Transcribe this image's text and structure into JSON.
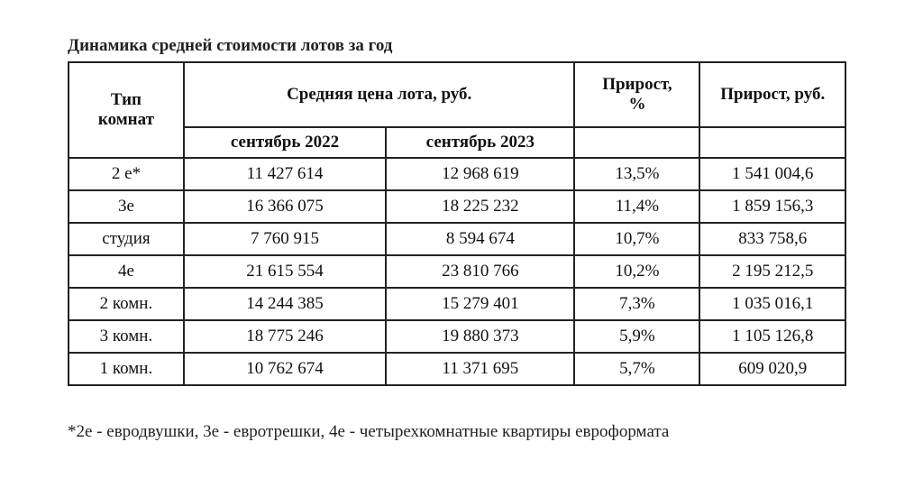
{
  "title": "Динамика средней стоимости лотов за год",
  "table": {
    "headers": {
      "type": "Тип комнат",
      "avg_price": "Средняя цена лота, руб.",
      "sep2022": "сентябрь 2022",
      "sep2023": "сентябрь 2023",
      "growth_pct": "Прирост, %",
      "growth_rub": "Прирост, руб."
    },
    "rows": [
      {
        "type": "2 е*",
        "sep2022": "11 427 614",
        "sep2023": "12 968 619",
        "growth_pct": "13,5%",
        "growth_rub": "1 541 004,6"
      },
      {
        "type": "3е",
        "sep2022": "16 366 075",
        "sep2023": "18 225 232",
        "growth_pct": "11,4%",
        "growth_rub": "1 859 156,3"
      },
      {
        "type": "студия",
        "sep2022": "7 760 915",
        "sep2023": "8 594 674",
        "growth_pct": "10,7%",
        "growth_rub": "833 758,6"
      },
      {
        "type": "4е",
        "sep2022": "21 615 554",
        "sep2023": "23 810 766",
        "growth_pct": "10,2%",
        "growth_rub": "2 195 212,5"
      },
      {
        "type": "2 комн.",
        "sep2022": "14 244 385",
        "sep2023": "15 279 401",
        "growth_pct": "7,3%",
        "growth_rub": "1 035 016,1"
      },
      {
        "type": "3 комн.",
        "sep2022": "18 775 246",
        "sep2023": "19 880 373",
        "growth_pct": "5,9%",
        "growth_rub": "1 105 126,8"
      },
      {
        "type": "1 комн.",
        "sep2022": "10 762 674",
        "sep2023": "11 371 695",
        "growth_pct": "5,7%",
        "growth_rub": "609 020,9"
      }
    ]
  },
  "footnote": "*2е - евродвушки, 3е - евротрешки, 4е - четырехкомнатные квартиры евроформата"
}
